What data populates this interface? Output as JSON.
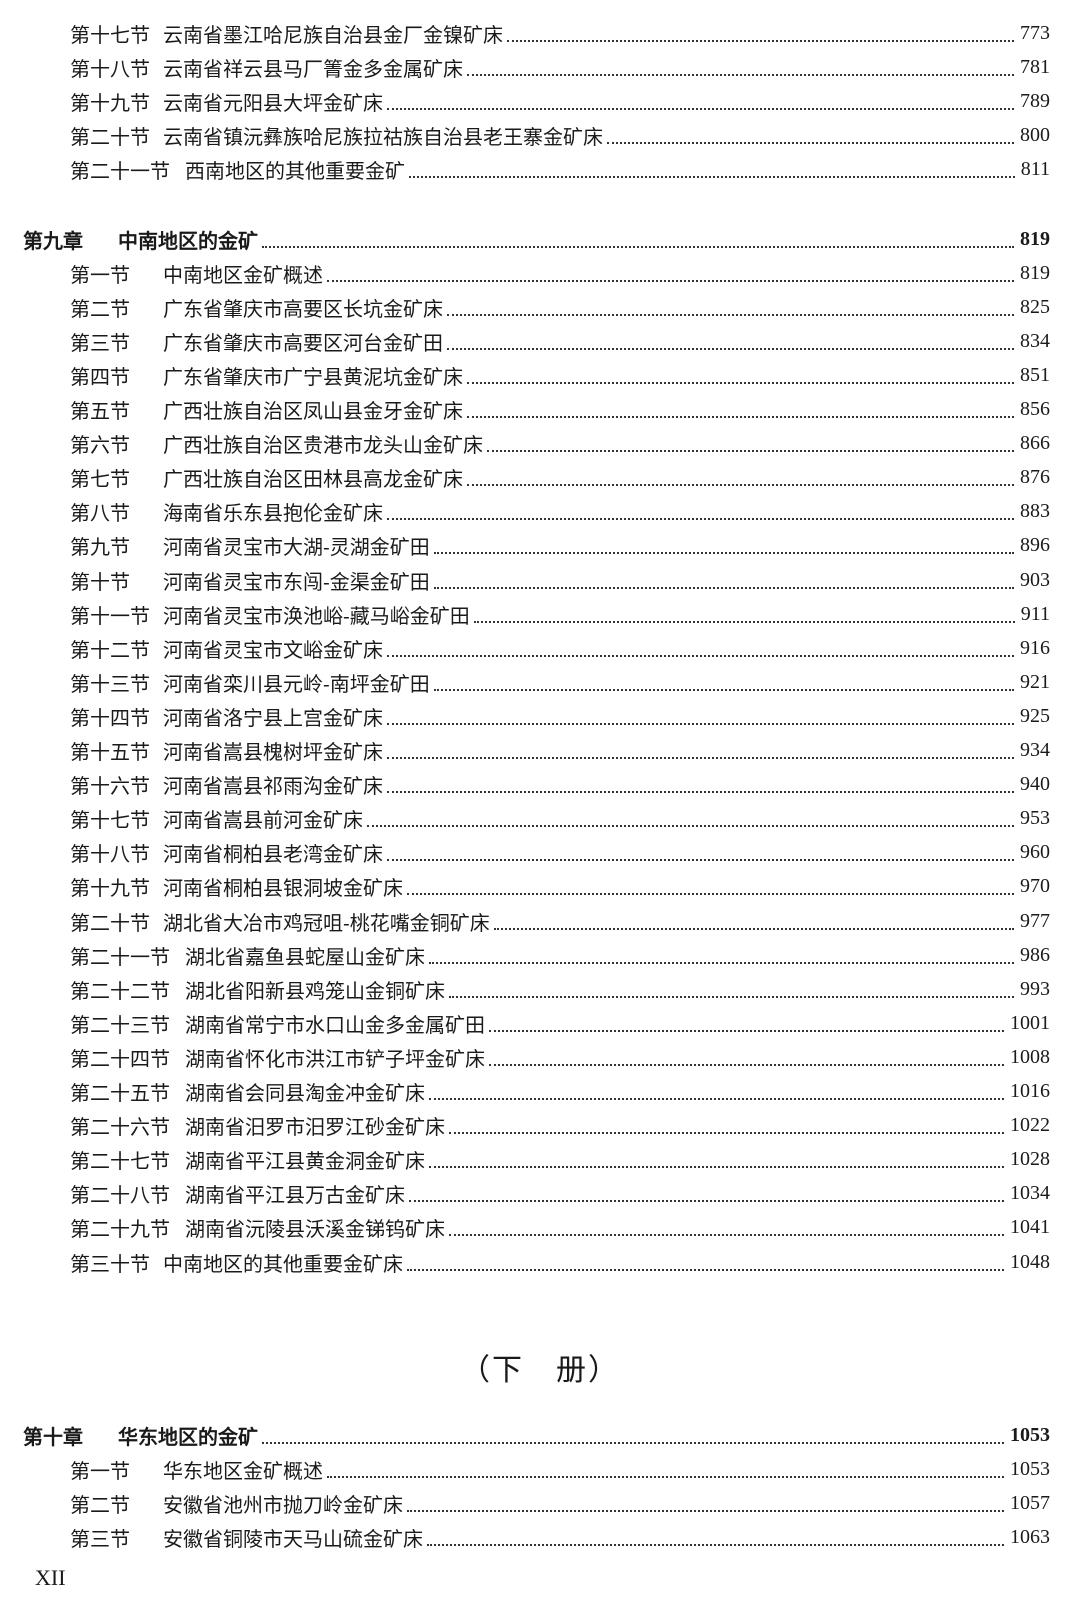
{
  "entries": [
    {
      "level": "section",
      "label": "第十七节",
      "title": "云南省墨江哈尼族自治县金厂金镍矿床",
      "page": "773"
    },
    {
      "level": "section",
      "label": "第十八节",
      "title": "云南省祥云县马厂箐金多金属矿床",
      "page": "781"
    },
    {
      "level": "section",
      "label": "第十九节",
      "title": "云南省元阳县大坪金矿床",
      "page": "789"
    },
    {
      "level": "section",
      "label": "第二十节",
      "title": "云南省镇沅彝族哈尼族拉祜族自治县老王寨金矿床",
      "page": "800"
    },
    {
      "level": "section",
      "label": "第二十一节",
      "title": "西南地区的其他重要金矿",
      "page": "811"
    },
    {
      "level": "gap"
    },
    {
      "level": "chapter",
      "label": "第九章",
      "title": "中南地区的金矿",
      "page": "819"
    },
    {
      "level": "section",
      "label": "第一节",
      "title": "中南地区金矿概述",
      "page": "819"
    },
    {
      "level": "section",
      "label": "第二节",
      "title": "广东省肇庆市高要区长坑金矿床",
      "page": "825"
    },
    {
      "level": "section",
      "label": "第三节",
      "title": "广东省肇庆市高要区河台金矿田",
      "page": "834"
    },
    {
      "level": "section",
      "label": "第四节",
      "title": "广东省肇庆市广宁县黄泥坑金矿床",
      "page": "851"
    },
    {
      "level": "section",
      "label": "第五节",
      "title": "广西壮族自治区凤山县金牙金矿床",
      "page": "856"
    },
    {
      "level": "section",
      "label": "第六节",
      "title": "广西壮族自治区贵港市龙头山金矿床",
      "page": "866"
    },
    {
      "level": "section",
      "label": "第七节",
      "title": "广西壮族自治区田林县高龙金矿床",
      "page": "876"
    },
    {
      "level": "section",
      "label": "第八节",
      "title": "海南省乐东县抱伦金矿床",
      "page": "883"
    },
    {
      "level": "section",
      "label": "第九节",
      "title": "河南省灵宝市大湖-灵湖金矿田",
      "page": "896"
    },
    {
      "level": "section",
      "label": "第十节",
      "title": "河南省灵宝市东闯-金渠金矿田",
      "page": "903"
    },
    {
      "level": "section",
      "label": "第十一节",
      "title": "河南省灵宝市涣池峪-藏马峪金矿田",
      "page": "911"
    },
    {
      "level": "section",
      "label": "第十二节",
      "title": "河南省灵宝市文峪金矿床",
      "page": "916"
    },
    {
      "level": "section",
      "label": "第十三节",
      "title": "河南省栾川县元岭-南坪金矿田",
      "page": "921"
    },
    {
      "level": "section",
      "label": "第十四节",
      "title": "河南省洛宁县上宫金矿床",
      "page": "925"
    },
    {
      "level": "section",
      "label": "第十五节",
      "title": "河南省嵩县槐树坪金矿床",
      "page": "934"
    },
    {
      "level": "section",
      "label": "第十六节",
      "title": "河南省嵩县祁雨沟金矿床",
      "page": "940"
    },
    {
      "level": "section",
      "label": "第十七节",
      "title": "河南省嵩县前河金矿床",
      "page": "953"
    },
    {
      "level": "section",
      "label": "第十八节",
      "title": "河南省桐柏县老湾金矿床",
      "page": "960"
    },
    {
      "level": "section",
      "label": "第十九节",
      "title": "河南省桐柏县银洞坡金矿床",
      "page": "970"
    },
    {
      "level": "section",
      "label": "第二十节",
      "title": "湖北省大冶市鸡冠咀-桃花嘴金铜矿床",
      "page": "977"
    },
    {
      "level": "section",
      "label": "第二十一节",
      "title": "湖北省嘉鱼县蛇屋山金矿床",
      "page": "986"
    },
    {
      "level": "section",
      "label": "第二十二节",
      "title": "湖北省阳新县鸡笼山金铜矿床",
      "page": "993"
    },
    {
      "level": "section",
      "label": "第二十三节",
      "title": "湖南省常宁市水口山金多金属矿田",
      "page": "1001"
    },
    {
      "level": "section",
      "label": "第二十四节",
      "title": "湖南省怀化市洪江市铲子坪金矿床",
      "page": "1008"
    },
    {
      "level": "section",
      "label": "第二十五节",
      "title": "湖南省会同县淘金冲金矿床",
      "page": "1016"
    },
    {
      "level": "section",
      "label": "第二十六节",
      "title": "湖南省汨罗市汨罗江砂金矿床",
      "page": "1022"
    },
    {
      "level": "section",
      "label": "第二十七节",
      "title": "湖南省平江县黄金洞金矿床",
      "page": "1028"
    },
    {
      "level": "section",
      "label": "第二十八节",
      "title": "湖南省平江县万古金矿床",
      "page": "1034"
    },
    {
      "level": "section",
      "label": "第二十九节",
      "title": "湖南省沅陵县沃溪金锑钨矿床",
      "page": "1041"
    },
    {
      "level": "section",
      "label": "第三十节",
      "title": "中南地区的其他重要金矿床",
      "page": "1048"
    }
  ],
  "volume_heading": "（下　册）",
  "entries2": [
    {
      "level": "chapter",
      "label": "第十章",
      "title": "华东地区的金矿",
      "page": "1053"
    },
    {
      "level": "section",
      "label": "第一节",
      "title": "华东地区金矿概述",
      "page": "1053"
    },
    {
      "level": "section",
      "label": "第二节",
      "title": "安徽省池州市抛刀岭金矿床",
      "page": "1057"
    },
    {
      "level": "section",
      "label": "第三节",
      "title": "安徽省铜陵市天马山硫金矿床",
      "page": "1063"
    }
  ],
  "folio": "XII"
}
